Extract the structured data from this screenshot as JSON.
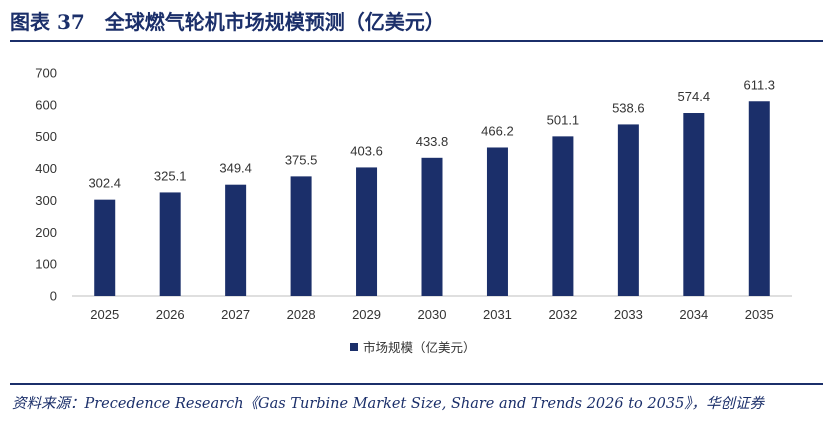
{
  "figure": {
    "title": "图表 37　全球燃气轮机市场规模预测（亿美元）",
    "source": "资料来源：Precedence Research《Gas Turbine Market Size, Share and Trends 2026 to 2035》，华创证券"
  },
  "chart_data": {
    "type": "bar",
    "categories": [
      "2025",
      "2026",
      "2027",
      "2028",
      "2029",
      "2030",
      "2031",
      "2032",
      "2033",
      "2034",
      "2035"
    ],
    "series": [
      {
        "name": "市场规模（亿美元）",
        "values": [
          302.4,
          325.1,
          349.4,
          375.5,
          403.6,
          433.8,
          466.2,
          501.1,
          538.6,
          574.4,
          611.3
        ]
      }
    ],
    "data_labels": [
      "302.4",
      "325.1",
      "349.4",
      "375.5",
      "403.6",
      "433.8",
      "466.2",
      "501.1",
      "538.6",
      "574.4",
      "611.3"
    ],
    "y_ticks": [
      "0",
      "100",
      "200",
      "300",
      "400",
      "500",
      "600",
      "700"
    ],
    "ylim": [
      0,
      700
    ],
    "title": "",
    "xlabel": "",
    "ylabel": "",
    "grid": false,
    "legend_position": "bottom",
    "colors": {
      "bar": "#1b2f6a",
      "axis": "#bfbfbf",
      "text": "#333333"
    }
  }
}
